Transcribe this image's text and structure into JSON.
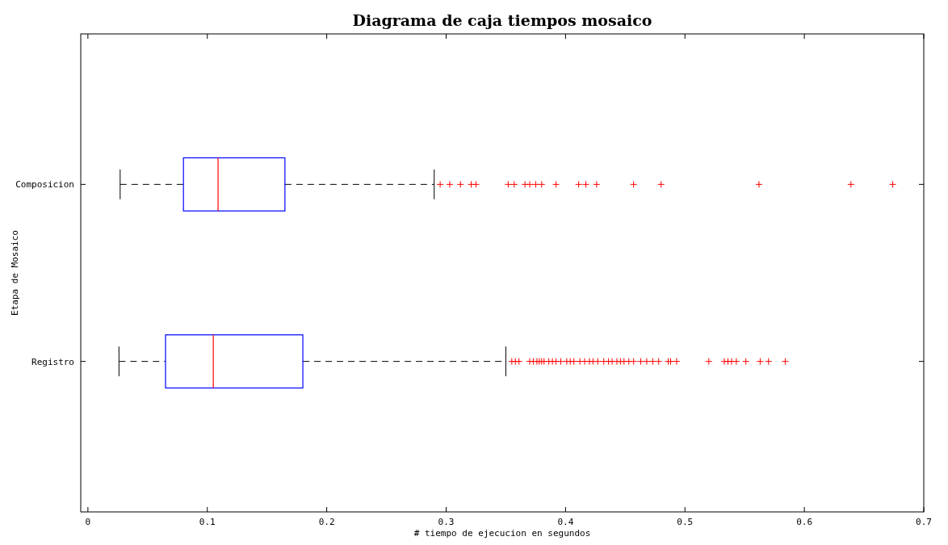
{
  "chart_data": {
    "type": "box",
    "orientation": "horizontal",
    "title": "Diagrama de caja tiempos mosaico",
    "xlabel": "# tiempo de ejecucion en segundos",
    "ylabel": "Etapa de Mosaico",
    "categories": [
      "Composicion",
      "Registro"
    ],
    "color": "#0000ff",
    "marker": "cross",
    "xlim": [
      -0.006,
      0.7
    ],
    "xticks": [
      0,
      0.1,
      0.2,
      0.3,
      0.4,
      0.5,
      0.6,
      0.7
    ],
    "boxes": [
      {
        "low": 0.027,
        "q1": 0.08,
        "median": 0.109,
        "q3": 0.165,
        "high": 0.29,
        "outliers": [
          0.295,
          0.303,
          0.312,
          0.321,
          0.325,
          0.352,
          0.357,
          0.366,
          0.37,
          0.375,
          0.38,
          0.392,
          0.411,
          0.417,
          0.426,
          0.457,
          0.48,
          0.562,
          0.639,
          0.674
        ]
      },
      {
        "low": 0.026,
        "q1": 0.065,
        "median": 0.105,
        "q3": 0.18,
        "high": 0.35,
        "outliers": [
          0.355,
          0.358,
          0.361,
          0.37,
          0.373,
          0.376,
          0.378,
          0.38,
          0.382,
          0.386,
          0.389,
          0.392,
          0.396,
          0.401,
          0.404,
          0.407,
          0.412,
          0.416,
          0.42,
          0.423,
          0.427,
          0.432,
          0.436,
          0.439,
          0.443,
          0.446,
          0.449,
          0.453,
          0.457,
          0.463,
          0.468,
          0.473,
          0.478,
          0.486,
          0.488,
          0.493,
          0.52,
          0.533,
          0.536,
          0.539,
          0.543,
          0.551,
          0.563,
          0.57,
          0.584
        ]
      }
    ]
  }
}
